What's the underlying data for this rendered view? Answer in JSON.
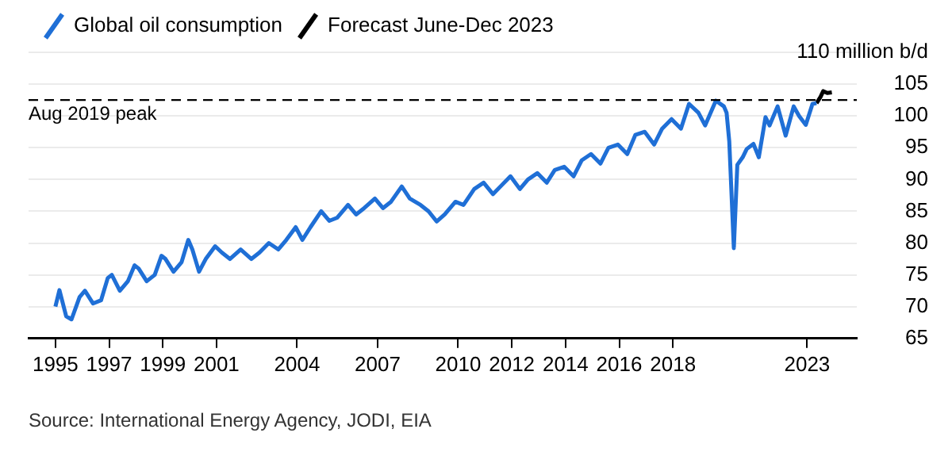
{
  "chart_data": {
    "type": "line",
    "series": [
      {
        "name": "Global oil consumption",
        "color": "#1f6fd6",
        "x": [
          1995.0,
          1995.15,
          1995.4,
          1995.6,
          1995.9,
          1996.1,
          1996.4,
          1996.7,
          1996.95,
          1997.1,
          1997.4,
          1997.7,
          1997.95,
          1998.1,
          1998.4,
          1998.7,
          1998.95,
          1999.1,
          1999.4,
          1999.7,
          1999.95,
          2000.1,
          2000.35,
          2000.6,
          2000.95,
          2001.2,
          2001.5,
          2001.9,
          2002.3,
          2002.6,
          2002.95,
          2003.3,
          2003.6,
          2003.95,
          2004.2,
          2004.5,
          2004.9,
          2005.2,
          2005.5,
          2005.9,
          2006.2,
          2006.5,
          2006.9,
          2007.2,
          2007.5,
          2007.9,
          2008.2,
          2008.6,
          2008.9,
          2009.2,
          2009.5,
          2009.9,
          2010.2,
          2010.6,
          2010.95,
          2011.3,
          2011.6,
          2011.95,
          2012.3,
          2012.6,
          2012.95,
          2013.3,
          2013.6,
          2013.95,
          2014.3,
          2014.6,
          2014.95,
          2015.3,
          2015.6,
          2015.95,
          2016.3,
          2016.6,
          2016.95,
          2017.3,
          2017.6,
          2017.95,
          2018.3,
          2018.6,
          2018.95,
          2019.2,
          2019.6,
          2019.9,
          2020.0,
          2020.1,
          2020.27,
          2020.4,
          2020.6,
          2020.75,
          2021.0,
          2021.2,
          2021.45,
          2021.6,
          2021.9,
          2022.2,
          2022.5,
          2022.7,
          2022.95,
          2023.2,
          2023.35
        ],
        "values": [
          70.0,
          72.6,
          68.5,
          68.0,
          71.5,
          72.5,
          70.5,
          71.0,
          74.5,
          75.0,
          72.5,
          74.0,
          76.5,
          76.0,
          74.0,
          75.0,
          78.0,
          77.5,
          75.5,
          77.0,
          80.5,
          79.0,
          75.5,
          77.5,
          79.5,
          78.5,
          77.5,
          79.0,
          77.5,
          78.5,
          80.0,
          79.0,
          80.5,
          82.5,
          80.5,
          82.5,
          85.0,
          83.5,
          84.0,
          86.0,
          84.5,
          85.5,
          87.0,
          85.5,
          86.5,
          88.9,
          87.0,
          86.0,
          85.0,
          83.4,
          84.5,
          86.5,
          86.0,
          88.5,
          89.5,
          87.7,
          89.0,
          90.5,
          88.5,
          90.0,
          91.0,
          89.5,
          91.5,
          92.0,
          90.5,
          93.0,
          94.0,
          92.5,
          95.0,
          95.5,
          94.0,
          97.0,
          97.5,
          95.5,
          98.0,
          99.5,
          98.0,
          101.9,
          100.5,
          98.5,
          102.4,
          101.5,
          100.5,
          96.0,
          79.2,
          92.3,
          93.5,
          94.8,
          95.6,
          93.5,
          99.8,
          98.5,
          101.5,
          96.9,
          101.5,
          100.0,
          98.6,
          101.9,
          102.0
        ]
      },
      {
        "name": "Forecast June-Dec 2023",
        "color": "#000000",
        "x": [
          2023.35,
          2023.5,
          2023.6,
          2023.75,
          2023.92
        ],
        "values": [
          102.0,
          103.0,
          103.9,
          103.6,
          103.7
        ]
      }
    ],
    "xlim": [
      1994.0,
      2024.85
    ],
    "xticks": [
      1995,
      1997,
      1999,
      2001,
      2004,
      2007,
      2010,
      2012,
      2014,
      2016,
      2018,
      2023
    ],
    "ylim": [
      65,
      110
    ],
    "yticks": [
      65,
      70,
      75,
      80,
      85,
      90,
      95,
      100,
      105,
      {
        "value": 110,
        "label": "110 million b/d"
      }
    ],
    "ref_lines": [
      {
        "axis": "y",
        "value": 102.5,
        "label": "Aug 2019 peak",
        "color": "#000000",
        "line_style": "dashed"
      }
    ],
    "annotations": [
      "Source: International Energy Agency, JODI, EIA"
    ],
    "grid": "y",
    "legend": "top left",
    "marker": "none",
    "line_style": "solid"
  }
}
